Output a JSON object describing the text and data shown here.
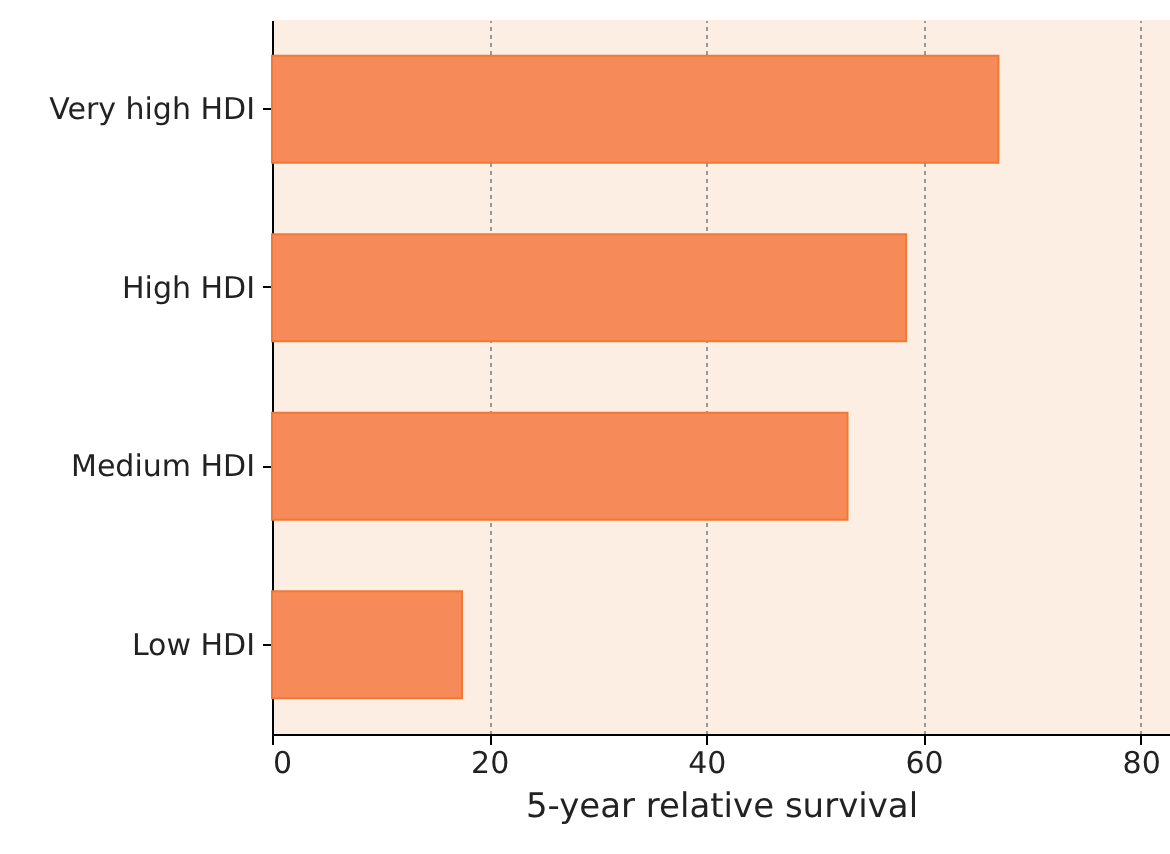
{
  "chart_data": {
    "type": "bar",
    "orientation": "horizontal",
    "xlabel": "5-year relative survival",
    "categories": [
      "Very high HDI",
      "High HDI",
      "Medium HDI",
      "Low HDI"
    ],
    "values": [
      66.9,
      58.4,
      53.0,
      17.5
    ],
    "color": "#f68a58",
    "xlim": [
      0,
      82.7
    ],
    "xticks": [
      0,
      20,
      40,
      60,
      80
    ],
    "grid": "x"
  }
}
